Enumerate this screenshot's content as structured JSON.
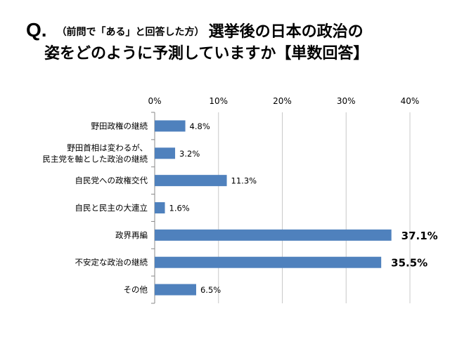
{
  "title": {
    "q_mark": "Q.",
    "sub": "（前問で「ある」と回答した方）",
    "line1": "選挙後の日本の政治の",
    "line2": "姿をどのように予測していますか【単数回答】"
  },
  "chart_data": {
    "type": "bar",
    "orientation": "horizontal",
    "title": "Q.（前問で「ある」と回答した方）選挙後の日本の政治の姿をどのように予測していますか【単数回答】",
    "xlim": [
      0,
      40
    ],
    "x_ticks": [
      "0%",
      "10%",
      "20%",
      "30%",
      "40%"
    ],
    "x_tick_values": [
      0,
      10,
      20,
      30,
      40
    ],
    "grid": true,
    "bar_color": "#4f81bd",
    "categories": [
      [
        "野田政権の継続"
      ],
      [
        "野田首相は変わるが、",
        "民主党を軸とした政治の継続"
      ],
      [
        "自民党への政権交代"
      ],
      [
        "自民と民主の大連立"
      ],
      [
        "政界再編"
      ],
      [
        "不安定な政治の継続"
      ],
      [
        "その他"
      ]
    ],
    "values": [
      4.8,
      3.2,
      11.3,
      1.6,
      37.1,
      35.5,
      6.5
    ],
    "value_labels": [
      "4.8%",
      "3.2%",
      "11.3%",
      "1.6%",
      "37.1%",
      "35.5%",
      "6.5%"
    ],
    "emphasized": [
      false,
      false,
      false,
      false,
      true,
      true,
      false
    ]
  }
}
